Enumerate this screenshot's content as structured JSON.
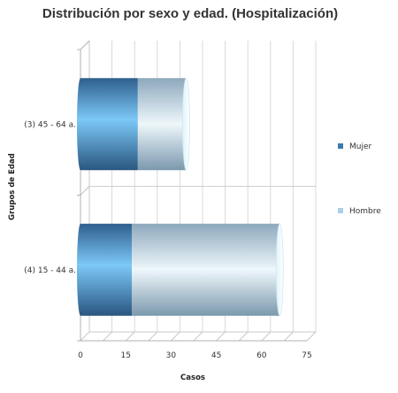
{
  "chart_data": {
    "type": "bar",
    "orientation": "horizontal",
    "stacked": true,
    "style": "3d-cylinder",
    "title": "Distribución por sexo y edad. (Hospitalización)",
    "xlabel": "Casos",
    "ylabel": "Grupos de Edad",
    "categories": [
      "(3) 45 - 64 a.",
      "(4) 15 - 44 a."
    ],
    "series": [
      {
        "name": "Mujer",
        "values": [
          19,
          17
        ],
        "color": "#3d78ac"
      },
      {
        "name": "Hombre",
        "values": [
          16,
          49
        ],
        "color": "#a9cfe6"
      }
    ],
    "xlim": [
      0,
      75
    ],
    "xticks": [
      "0",
      "15",
      "30",
      "45",
      "60",
      "75"
    ],
    "grid": true,
    "legend_position": "right"
  }
}
